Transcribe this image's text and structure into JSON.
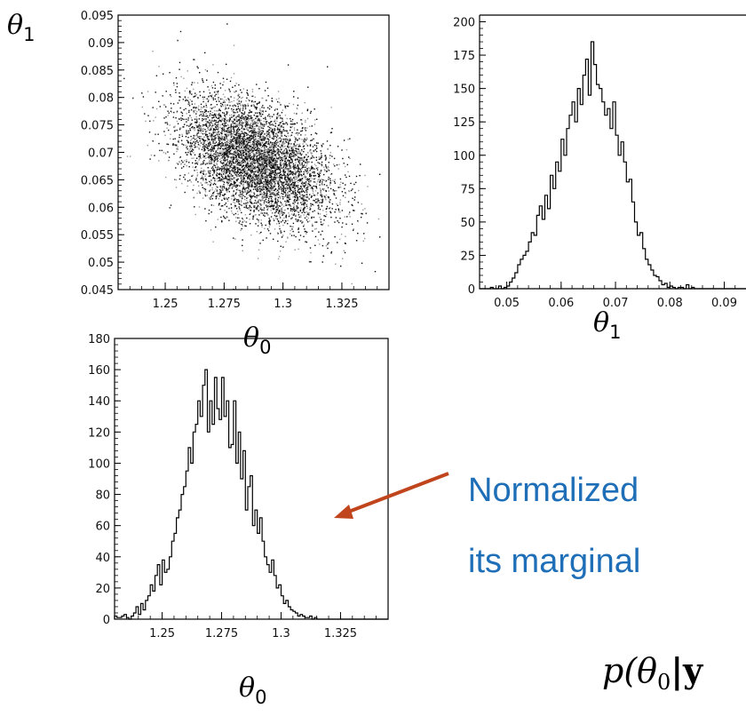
{
  "colors": {
    "annotation": "#1f6fb8",
    "arrow": "#c0441c",
    "axis": "#000000",
    "points": "#111111"
  },
  "annotation": {
    "lines": [
      "Normalized",
      "its marginal"
    ],
    "formula_prefix": "p(θ",
    "formula_sub": "0",
    "formula_suffix": "|y"
  },
  "chart_data": [
    {
      "id": "scatter",
      "type": "scatter",
      "xlabel": {
        "sym": "θ",
        "sub": "0"
      },
      "ylabel": {
        "sym": "θ",
        "sub": "1"
      },
      "xlim": [
        1.23,
        1.345
      ],
      "ylim": [
        0.045,
        0.095
      ],
      "xticks": [
        "1.25",
        "1.275",
        "1.3",
        "1.325"
      ],
      "yticks": [
        "0.045",
        "0.05",
        "0.055",
        "0.06",
        "0.065",
        "0.07",
        "0.075",
        "0.08",
        "0.085",
        "0.09",
        "0.095"
      ],
      "distribution": {
        "n": 6000,
        "mean_x": 1.288,
        "sd_x": 0.016,
        "mean_y": 0.0685,
        "sd_y": 0.0058,
        "correlation": -0.45
      },
      "outliers": [
        [
          1.276,
          0.0935
        ],
        [
          1.255,
          0.0905
        ],
        [
          1.262,
          0.087
        ],
        [
          1.311,
          0.0502
        ],
        [
          1.335,
          0.059
        ],
        [
          1.236,
          0.08
        ]
      ]
    },
    {
      "id": "hist-theta1",
      "type": "bar",
      "xlabel": {
        "sym": "θ",
        "sub": "1"
      },
      "xlim": [
        0.045,
        0.094
      ],
      "ylim": [
        0,
        205
      ],
      "xticks": [
        "0.05",
        "0.06",
        "0.07",
        "0.08",
        "0.09"
      ],
      "yticks": [
        "0",
        "25",
        "50",
        "75",
        "100",
        "125",
        "150",
        "175",
        "200"
      ],
      "bin_start": 0.045,
      "bin_width": 0.0005,
      "values": [
        0,
        0,
        0,
        0,
        1,
        0,
        0,
        2,
        0,
        1,
        2,
        5,
        8,
        12,
        18,
        22,
        25,
        28,
        35,
        42,
        40,
        55,
        62,
        52,
        70,
        60,
        85,
        75,
        95,
        88,
        112,
        100,
        120,
        130,
        140,
        125,
        150,
        138,
        160,
        172,
        145,
        185,
        168,
        153,
        150,
        140,
        130,
        135,
        120,
        140,
        115,
        100,
        110,
        95,
        80,
        82,
        65,
        50,
        40,
        42,
        30,
        22,
        18,
        14,
        10,
        9,
        6,
        3,
        4,
        1,
        2,
        1,
        0,
        1,
        1,
        0,
        3,
        0,
        1,
        0,
        0,
        0,
        0,
        0,
        0,
        0,
        0,
        0,
        0,
        0,
        0,
        0,
        0,
        0,
        0,
        0,
        0,
        0
      ]
    },
    {
      "id": "hist-theta0",
      "type": "bar",
      "xlabel": {
        "sym": "θ",
        "sub": "0"
      },
      "xlim": [
        1.23,
        1.345
      ],
      "ylim": [
        0,
        180
      ],
      "xticks": [
        "1.25",
        "1.275",
        "1.3",
        "1.325"
      ],
      "yticks": [
        "0",
        "20",
        "40",
        "60",
        "80",
        "100",
        "120",
        "140",
        "160",
        "180"
      ],
      "bin_start": 1.23,
      "bin_width": 0.001,
      "values": [
        2,
        1,
        1,
        2,
        3,
        1,
        0,
        2,
        4,
        8,
        3,
        10,
        6,
        12,
        15,
        22,
        18,
        28,
        35,
        22,
        38,
        30,
        32,
        40,
        50,
        55,
        65,
        70,
        80,
        85,
        95,
        110,
        100,
        120,
        125,
        140,
        130,
        150,
        160,
        120,
        140,
        125,
        155,
        135,
        128,
        155,
        130,
        140,
        110,
        112,
        140,
        100,
        120,
        90,
        108,
        70,
        85,
        92,
        60,
        70,
        55,
        65,
        50,
        40,
        35,
        30,
        38,
        28,
        20,
        22,
        15,
        10,
        12,
        8,
        6,
        5,
        4,
        2,
        3,
        2,
        1,
        1,
        2,
        0,
        1,
        0,
        0,
        0,
        0,
        0,
        0,
        0,
        0,
        0,
        0,
        0,
        0,
        0,
        0,
        0,
        0,
        0,
        0,
        0,
        0,
        0,
        0,
        0,
        0,
        0,
        0,
        0,
        0,
        0,
        0
      ]
    }
  ]
}
